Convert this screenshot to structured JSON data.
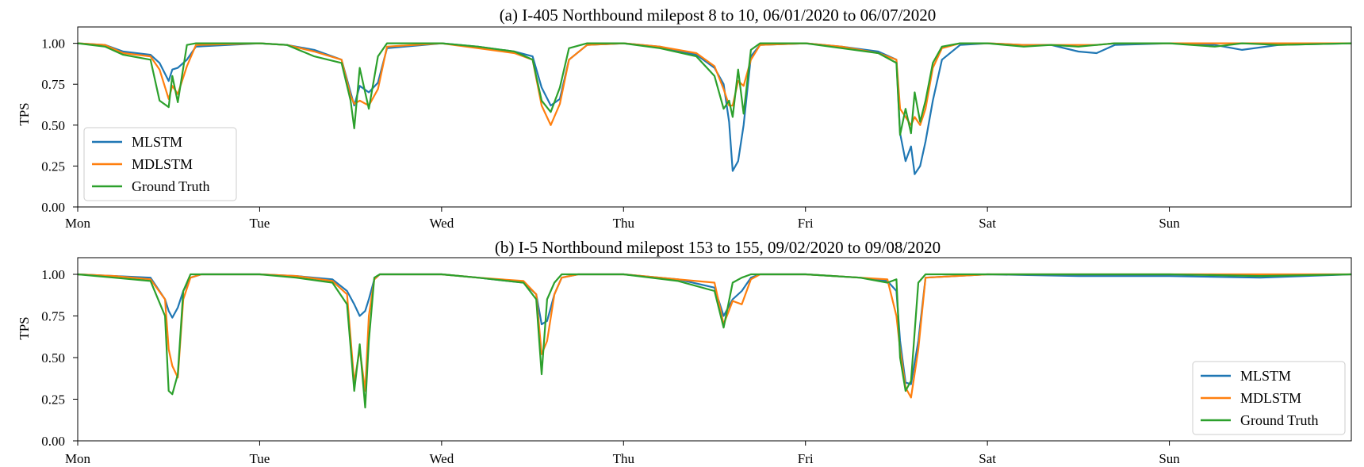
{
  "colors": {
    "MLSTM": "#1f77b4",
    "MDLSTM": "#ff7f0e",
    "Ground Truth": "#2ca02c"
  },
  "chart_data": [
    {
      "type": "line",
      "title": "(a) I-405 Northbound milepost 8 to 10, 06/01/2020 to 06/07/2020",
      "ylabel": "TPS",
      "xlabel": "",
      "xlim": [
        0,
        7
      ],
      "ylim": [
        0,
        1.1
      ],
      "xticks": [
        0,
        1,
        2,
        3,
        4,
        5,
        6
      ],
      "xticklabels": [
        "Mon",
        "Tue",
        "Wed",
        "Thu",
        "Fri",
        "Sat",
        "Sun"
      ],
      "yticks": [
        "0.00",
        "0.25",
        "0.50",
        "0.75",
        "1.00"
      ],
      "legend": "lower-left",
      "series": [
        {
          "name": "MLSTM",
          "x": [
            0,
            0.15,
            0.25,
            0.4,
            0.45,
            0.5,
            0.52,
            0.55,
            0.6,
            0.65,
            1.0,
            1.15,
            1.3,
            1.45,
            1.5,
            1.52,
            1.55,
            1.6,
            1.65,
            1.7,
            2.0,
            2.2,
            2.4,
            2.5,
            2.55,
            2.6,
            2.65,
            2.7,
            2.8,
            3.0,
            3.2,
            3.4,
            3.5,
            3.55,
            3.58,
            3.6,
            3.63,
            3.66,
            3.7,
            3.75,
            4.0,
            4.2,
            4.4,
            4.5,
            4.52,
            4.55,
            4.58,
            4.6,
            4.63,
            4.66,
            4.7,
            4.75,
            4.85,
            5.0,
            5.2,
            5.35,
            5.5,
            5.6,
            5.7,
            6.0,
            6.25,
            6.4,
            6.6,
            7.0
          ],
          "y": [
            1.0,
            0.99,
            0.95,
            0.93,
            0.88,
            0.77,
            0.84,
            0.85,
            0.9,
            0.98,
            1.0,
            0.99,
            0.96,
            0.9,
            0.7,
            0.62,
            0.74,
            0.7,
            0.76,
            0.97,
            1.0,
            0.98,
            0.95,
            0.92,
            0.73,
            0.62,
            0.66,
            0.9,
            0.99,
            1.0,
            0.98,
            0.93,
            0.85,
            0.75,
            0.52,
            0.22,
            0.28,
            0.5,
            0.92,
            0.99,
            1.0,
            0.98,
            0.95,
            0.9,
            0.45,
            0.28,
            0.37,
            0.2,
            0.25,
            0.4,
            0.65,
            0.9,
            0.99,
            1.0,
            0.99,
            0.99,
            0.95,
            0.94,
            0.99,
            1.0,
            0.99,
            0.96,
            0.99,
            1.0
          ]
        },
        {
          "name": "MDLSTM",
          "x": [
            0,
            0.15,
            0.25,
            0.4,
            0.45,
            0.5,
            0.52,
            0.55,
            0.6,
            0.65,
            1.0,
            1.15,
            1.3,
            1.45,
            1.5,
            1.52,
            1.55,
            1.6,
            1.65,
            1.7,
            2.0,
            2.2,
            2.4,
            2.5,
            2.55,
            2.6,
            2.65,
            2.7,
            2.8,
            3.0,
            3.2,
            3.4,
            3.5,
            3.55,
            3.58,
            3.6,
            3.63,
            3.66,
            3.7,
            3.75,
            4.0,
            4.2,
            4.4,
            4.5,
            4.52,
            4.55,
            4.58,
            4.6,
            4.63,
            4.66,
            4.7,
            4.75,
            4.85,
            5.0,
            5.2,
            5.35,
            5.5,
            5.6,
            5.7,
            6.0,
            6.25,
            6.4,
            6.6,
            7.0
          ],
          "y": [
            1.0,
            0.99,
            0.94,
            0.92,
            0.84,
            0.66,
            0.74,
            0.69,
            0.86,
            0.99,
            1.0,
            0.99,
            0.95,
            0.9,
            0.68,
            0.63,
            0.65,
            0.62,
            0.72,
            0.98,
            1.0,
            0.97,
            0.94,
            0.9,
            0.62,
            0.5,
            0.63,
            0.9,
            0.99,
            1.0,
            0.98,
            0.94,
            0.86,
            0.72,
            0.62,
            0.62,
            0.77,
            0.74,
            0.9,
            0.99,
            1.0,
            0.98,
            0.94,
            0.9,
            0.6,
            0.55,
            0.5,
            0.55,
            0.5,
            0.6,
            0.85,
            0.97,
            1.0,
            1.0,
            0.99,
            0.99,
            0.99,
            0.99,
            1.0,
            1.0,
            1.0,
            1.0,
            1.0,
            1.0
          ]
        },
        {
          "name": "Ground Truth",
          "x": [
            0,
            0.15,
            0.25,
            0.4,
            0.45,
            0.5,
            0.52,
            0.55,
            0.6,
            0.65,
            1.0,
            1.15,
            1.3,
            1.45,
            1.5,
            1.52,
            1.55,
            1.6,
            1.65,
            1.7,
            2.0,
            2.2,
            2.4,
            2.5,
            2.55,
            2.6,
            2.65,
            2.7,
            2.8,
            3.0,
            3.2,
            3.4,
            3.5,
            3.55,
            3.58,
            3.6,
            3.63,
            3.66,
            3.7,
            3.75,
            4.0,
            4.2,
            4.4,
            4.5,
            4.52,
            4.55,
            4.58,
            4.6,
            4.63,
            4.66,
            4.7,
            4.75,
            4.85,
            5.0,
            5.2,
            5.35,
            5.5,
            5.6,
            5.7,
            6.0,
            6.25,
            6.4,
            6.6,
            7.0
          ],
          "y": [
            1.0,
            0.98,
            0.93,
            0.9,
            0.65,
            0.61,
            0.8,
            0.64,
            0.99,
            1.0,
            1.0,
            0.99,
            0.92,
            0.88,
            0.65,
            0.48,
            0.85,
            0.6,
            0.92,
            1.0,
            1.0,
            0.98,
            0.95,
            0.9,
            0.65,
            0.58,
            0.73,
            0.97,
            1.0,
            1.0,
            0.97,
            0.92,
            0.8,
            0.6,
            0.65,
            0.55,
            0.84,
            0.57,
            0.96,
            1.0,
            1.0,
            0.97,
            0.94,
            0.88,
            0.44,
            0.6,
            0.45,
            0.7,
            0.52,
            0.65,
            0.88,
            0.98,
            1.0,
            1.0,
            0.98,
            0.99,
            0.98,
            0.99,
            1.0,
            1.0,
            0.98,
            1.0,
            0.99,
            1.0
          ]
        }
      ]
    },
    {
      "type": "line",
      "title": "(b) I-5 Northbound milepost 153 to 155, 09/02/2020 to 09/08/2020",
      "ylabel": "TPS",
      "xlabel": "",
      "xlim": [
        0,
        7
      ],
      "ylim": [
        0,
        1.1
      ],
      "xticks": [
        0,
        1,
        2,
        3,
        4,
        5,
        6
      ],
      "xticklabels": [
        "Mon",
        "Tue",
        "Wed",
        "Thu",
        "Fri",
        "Sat",
        "Sun"
      ],
      "yticks": [
        "0.00",
        "0.25",
        "0.50",
        "0.75",
        "1.00"
      ],
      "legend": "lower-right",
      "series": [
        {
          "name": "MLSTM",
          "x": [
            0,
            0.2,
            0.4,
            0.48,
            0.5,
            0.52,
            0.55,
            0.58,
            0.62,
            0.68,
            1.0,
            1.2,
            1.4,
            1.48,
            1.52,
            1.55,
            1.58,
            1.6,
            1.63,
            1.66,
            1.7,
            2.0,
            2.2,
            2.45,
            2.52,
            2.55,
            2.58,
            2.62,
            2.66,
            2.75,
            3.0,
            3.3,
            3.5,
            3.55,
            3.6,
            3.65,
            3.7,
            3.75,
            4.0,
            4.3,
            4.45,
            4.5,
            4.52,
            4.55,
            4.58,
            4.62,
            4.66,
            5.0,
            5.5,
            6.0,
            6.5,
            7.0
          ],
          "y": [
            1.0,
            0.99,
            0.98,
            0.85,
            0.78,
            0.74,
            0.8,
            0.9,
            0.98,
            1.0,
            1.0,
            0.99,
            0.97,
            0.9,
            0.82,
            0.75,
            0.78,
            0.85,
            0.97,
            1.0,
            1.0,
            1.0,
            0.98,
            0.95,
            0.88,
            0.7,
            0.72,
            0.88,
            0.98,
            1.0,
            1.0,
            0.97,
            0.92,
            0.75,
            0.85,
            0.9,
            0.98,
            1.0,
            1.0,
            0.98,
            0.96,
            0.9,
            0.6,
            0.35,
            0.34,
            0.6,
            0.98,
            1.0,
            0.99,
            0.99,
            0.98,
            1.0
          ]
        },
        {
          "name": "MDLSTM",
          "x": [
            0,
            0.2,
            0.4,
            0.48,
            0.5,
            0.52,
            0.55,
            0.58,
            0.62,
            0.68,
            1.0,
            1.2,
            1.4,
            1.48,
            1.52,
            1.55,
            1.58,
            1.6,
            1.63,
            1.66,
            1.7,
            2.0,
            2.2,
            2.45,
            2.52,
            2.55,
            2.58,
            2.62,
            2.66,
            2.75,
            3.0,
            3.3,
            3.5,
            3.55,
            3.6,
            3.65,
            3.7,
            3.75,
            4.0,
            4.3,
            4.45,
            4.5,
            4.52,
            4.55,
            4.58,
            4.62,
            4.66,
            5.0,
            5.5,
            6.0,
            6.5,
            7.0
          ],
          "y": [
            1.0,
            0.99,
            0.97,
            0.85,
            0.55,
            0.45,
            0.38,
            0.85,
            0.98,
            1.0,
            1.0,
            0.99,
            0.96,
            0.88,
            0.35,
            0.55,
            0.3,
            0.75,
            0.97,
            1.0,
            1.0,
            1.0,
            0.98,
            0.96,
            0.88,
            0.52,
            0.6,
            0.88,
            0.98,
            1.0,
            1.0,
            0.97,
            0.95,
            0.7,
            0.84,
            0.82,
            0.97,
            1.0,
            1.0,
            0.98,
            0.97,
            0.75,
            0.55,
            0.32,
            0.26,
            0.55,
            0.98,
            1.0,
            1.0,
            1.0,
            1.0,
            1.0
          ]
        },
        {
          "name": "Ground Truth",
          "x": [
            0,
            0.2,
            0.4,
            0.48,
            0.5,
            0.52,
            0.55,
            0.58,
            0.62,
            0.68,
            1.0,
            1.2,
            1.4,
            1.48,
            1.52,
            1.55,
            1.58,
            1.6,
            1.63,
            1.66,
            1.7,
            2.0,
            2.2,
            2.45,
            2.52,
            2.55,
            2.58,
            2.62,
            2.66,
            2.75,
            3.0,
            3.3,
            3.5,
            3.55,
            3.6,
            3.65,
            3.7,
            3.75,
            4.0,
            4.3,
            4.45,
            4.5,
            4.52,
            4.55,
            4.58,
            4.62,
            4.66,
            5.0,
            5.5,
            6.0,
            6.5,
            7.0
          ],
          "y": [
            1.0,
            0.98,
            0.96,
            0.75,
            0.3,
            0.28,
            0.4,
            0.9,
            1.0,
            1.0,
            1.0,
            0.98,
            0.95,
            0.82,
            0.3,
            0.58,
            0.2,
            0.6,
            0.98,
            1.0,
            1.0,
            1.0,
            0.98,
            0.95,
            0.85,
            0.4,
            0.85,
            0.95,
            1.0,
            1.0,
            1.0,
            0.96,
            0.9,
            0.68,
            0.95,
            0.98,
            1.0,
            1.0,
            1.0,
            0.98,
            0.95,
            0.97,
            0.5,
            0.3,
            0.36,
            0.95,
            1.0,
            1.0,
            1.0,
            1.0,
            0.99,
            1.0
          ]
        }
      ]
    }
  ]
}
